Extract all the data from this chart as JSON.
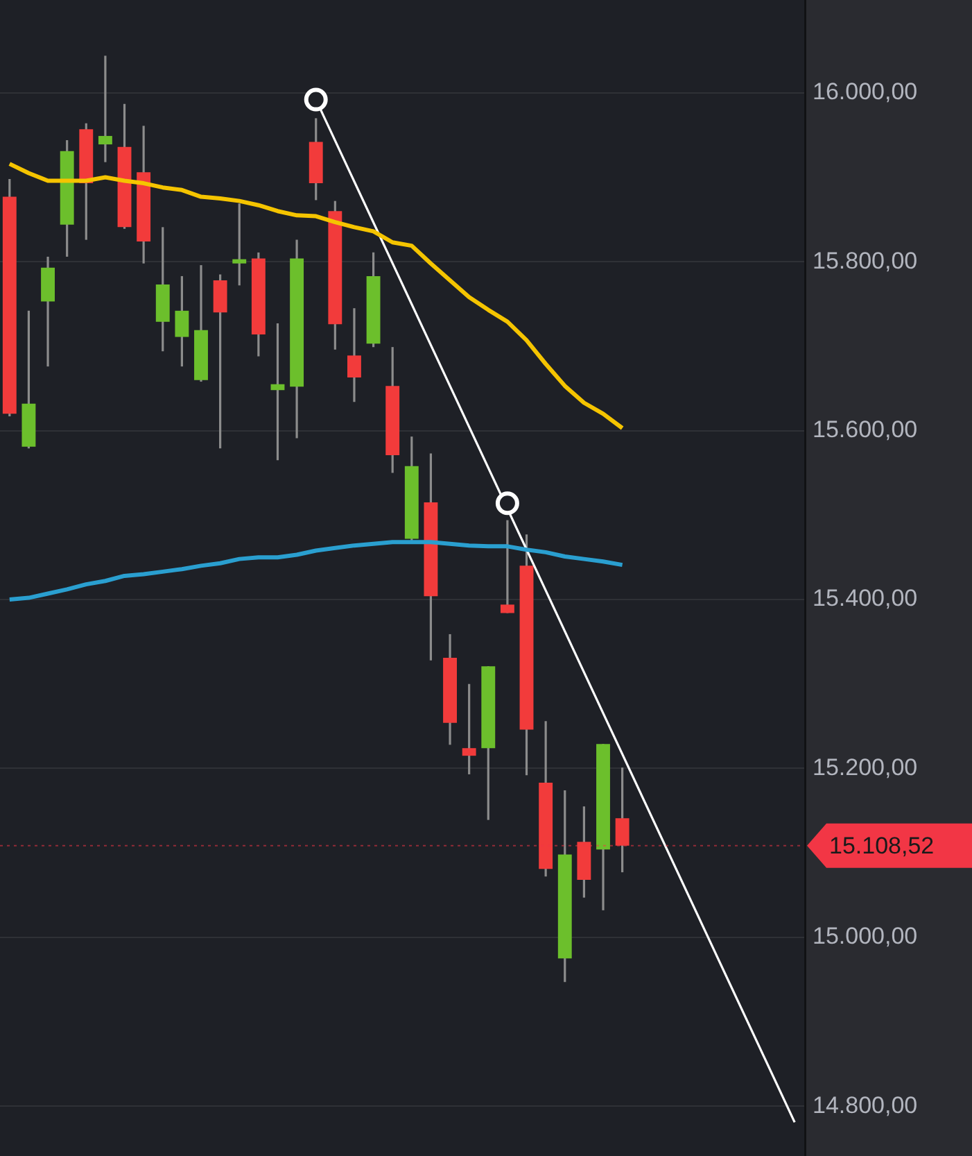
{
  "chart_data": {
    "type": "candlestick",
    "categories": [
      null,
      null,
      null,
      null,
      null,
      null,
      null,
      null,
      null,
      null,
      null,
      null,
      null,
      null,
      null,
      null,
      null,
      null,
      null,
      null,
      null,
      null,
      null,
      null,
      null,
      null,
      null,
      null,
      null,
      null,
      null,
      null,
      null,
      null,
      null,
      null,
      null,
      null,
      null,
      null,
      null,
      null
    ],
    "ohlc": [
      [
        15877,
        15898,
        15617,
        15620
      ],
      [
        15581,
        15742,
        15579,
        15632
      ],
      [
        15753,
        15806,
        15676,
        15793
      ],
      [
        15844,
        15944,
        15806,
        15931
      ],
      [
        15957,
        15964,
        15826,
        15893
      ],
      [
        15939,
        16044,
        15918,
        15949
      ],
      [
        15936,
        15987,
        15839,
        15841
      ],
      [
        15906,
        15961,
        15798,
        15824
      ],
      [
        15729,
        15841,
        15694,
        15773
      ],
      [
        15711,
        15783,
        15676,
        15742
      ],
      [
        15660,
        15796,
        15658,
        15719
      ],
      [
        15778,
        15785,
        15579,
        15740
      ],
      [
        15798,
        15869,
        15772,
        15803
      ],
      [
        15804,
        15811,
        15688,
        15714
      ],
      [
        15648,
        15727,
        15565,
        15655
      ],
      [
        15652,
        15826,
        15591,
        15804
      ],
      [
        15942,
        15970,
        15873,
        15893
      ],
      [
        15860,
        15872,
        15696,
        15726
      ],
      [
        15689,
        15745,
        15634,
        15663
      ],
      [
        15703,
        15811,
        15699,
        15783
      ],
      [
        15653,
        15699,
        15550,
        15571
      ],
      [
        15472,
        15593,
        15470,
        15558
      ],
      [
        15515,
        15573,
        15328,
        15404
      ],
      [
        15331,
        15359,
        15228,
        15254
      ],
      [
        15224,
        15300,
        15193,
        15215
      ],
      [
        15224,
        15321,
        15139,
        15321
      ],
      [
        15394,
        15494,
        15384,
        15384
      ],
      [
        15440,
        15477,
        15192,
        15246
      ],
      [
        15183,
        15256,
        15072,
        15081
      ],
      [
        14975,
        15174,
        14947,
        15098
      ],
      [
        15113,
        15155,
        15047,
        15068
      ],
      [
        15104,
        15229,
        15032,
        15229
      ],
      [
        15141,
        15201,
        15077,
        15108.52
      ],
      null,
      null,
      null,
      null,
      null,
      null,
      null,
      null,
      null
    ],
    "colors": [
      "#f23b3b",
      "#6cbf2c",
      "#6cbf2c",
      "#6cbf2c",
      "#f23b3b",
      "#6cbf2c",
      "#f23b3b",
      "#f23b3b",
      "#6cbf2c",
      "#6cbf2c",
      "#6cbf2c",
      "#f23b3b",
      "#6cbf2c",
      "#f23b3b",
      "#6cbf2c",
      "#6cbf2c",
      "#f23b3b",
      "#f23b3b",
      "#f23b3b",
      "#6cbf2c",
      "#f23b3b",
      "#6cbf2c",
      "#f23b3b",
      "#f23b3b",
      "#f23b3b",
      "#6cbf2c",
      "#f23b3b",
      "#f23b3b",
      "#f23b3b",
      "#6cbf2c",
      "#f23b3b",
      "#6cbf2c",
      "#f23b3b",
      null,
      null,
      null,
      null,
      null,
      null,
      null,
      null,
      null
    ],
    "series": [
      {
        "type": "line",
        "color": "#f5c400",
        "marker": "none",
        "values": [
          15916,
          15905,
          15896,
          15896,
          15896,
          15900,
          15896,
          15893,
          15888,
          15885,
          15877,
          15875,
          15872,
          15867,
          15860,
          15855,
          15854,
          15847,
          15841,
          15836,
          15823,
          15819,
          15798,
          15778,
          15758,
          15743,
          15729,
          15707,
          15679,
          15653,
          15633,
          15620,
          15603,
          null,
          null,
          null,
          null,
          null,
          null,
          null,
          null,
          null
        ]
      },
      {
        "type": "line",
        "color": "#2a9fd0",
        "marker": "none",
        "values": [
          15400,
          15402,
          15407,
          15412,
          15418,
          15422,
          15428,
          15430,
          15433,
          15436,
          15440,
          15443,
          15448,
          15450,
          15450,
          15453,
          15458,
          15461,
          15464,
          15466,
          15468,
          15468,
          15468,
          15466,
          15464,
          15463,
          15463,
          15459,
          15456,
          15451,
          15448,
          15445,
          15441,
          null,
          null,
          null,
          null,
          null,
          null,
          null,
          null,
          null
        ]
      },
      {
        "type": "line",
        "color": "#ffffff",
        "marker": "none",
        "values": [
          null,
          null,
          null,
          null,
          null,
          null,
          null,
          null,
          null,
          null,
          null,
          null,
          null,
          null,
          null,
          null,
          15992,
          null,
          null,
          null,
          null,
          null,
          null,
          null,
          null,
          null,
          null,
          null,
          null,
          null,
          null,
          null,
          null,
          null,
          null,
          null,
          null,
          null,
          null,
          null,
          null,
          14781
        ]
      },
      {
        "type": "scatter",
        "color": "#ffffff",
        "marker": "circle",
        "values": [
          null,
          null,
          null,
          null,
          null,
          null,
          null,
          null,
          null,
          null,
          null,
          null,
          null,
          null,
          null,
          null,
          15992,
          null,
          null,
          null,
          null,
          null,
          null,
          null,
          null,
          null,
          15514,
          null,
          null,
          null,
          null,
          null,
          null,
          null,
          null,
          null,
          null,
          null,
          null,
          null,
          null,
          null
        ]
      }
    ],
    "ylim": [
      14741,
      16110
    ],
    "yticks": [
      {
        "value": 14800,
        "label": "14.800,00"
      },
      {
        "value": 15000,
        "label": "15.000,00"
      },
      {
        "value": 15200,
        "label": "15.200,00"
      },
      {
        "value": 15400,
        "label": "15.400,00"
      },
      {
        "value": 15600,
        "label": "15.600,00"
      },
      {
        "value": 15800,
        "label": "15.800,00"
      },
      {
        "value": 16000,
        "label": "16.000,00"
      }
    ],
    "ref_lines": [
      {
        "axis": "y",
        "value": 15108.52,
        "label": "15.108,52",
        "color": "#f23645"
      }
    ],
    "grid": "y",
    "tick_labels": "y",
    "legend": false
  }
}
